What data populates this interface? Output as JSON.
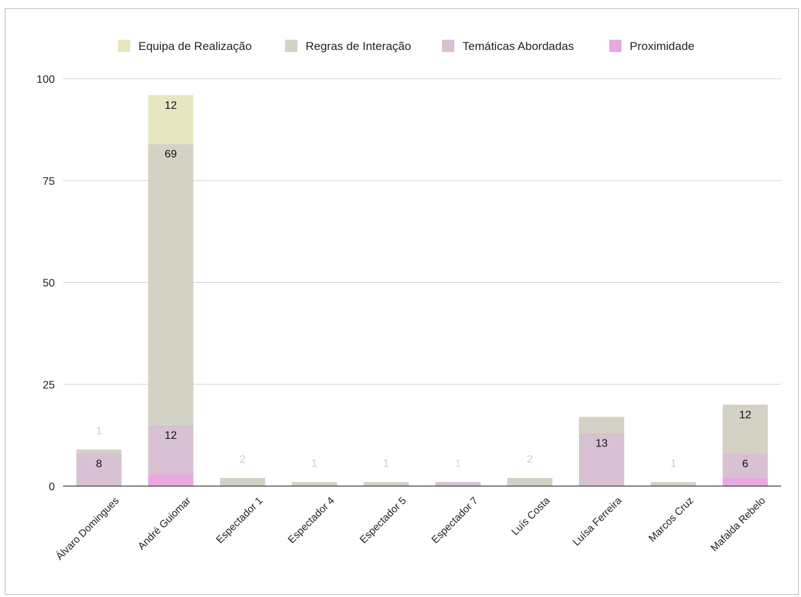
{
  "chart_data": {
    "type": "bar",
    "stacked": true,
    "title": "",
    "xlabel": "",
    "ylabel": "",
    "ylim": [
      0,
      100
    ],
    "yticks": [
      0,
      25,
      50,
      75,
      100
    ],
    "grid": true,
    "legend_position": "top",
    "categories": [
      "Álvaro Domingues",
      "André Guiomar",
      "Espectador 1",
      "Espectador 4",
      "Espectador 5",
      "Espectador 7",
      "Luís Costa",
      "Luísa Ferreira",
      "Marcos Cruz",
      "Mafalda Rebelo"
    ],
    "series": [
      {
        "name": "Proximidade",
        "color": "#e9a8e0",
        "values": [
          0,
          3,
          0,
          0,
          0,
          0,
          0,
          0,
          0,
          2
        ]
      },
      {
        "name": "Temáticas Abordadas",
        "color": "#d7c1d2",
        "values": [
          8,
          12,
          0,
          0,
          0,
          1,
          0,
          13,
          0,
          6
        ]
      },
      {
        "name": "Regras de Interação",
        "color": "#d3d2c5",
        "values": [
          1,
          69,
          2,
          1,
          1,
          0,
          2,
          4,
          1,
          12
        ]
      },
      {
        "name": "Equipa de Realização",
        "color": "#e8e6c1",
        "values": [
          0,
          12,
          0,
          0,
          0,
          0,
          0,
          0,
          0,
          0
        ]
      }
    ],
    "legend_order": [
      "Equipa de Realização",
      "Regras de Interação",
      "Temáticas Abordadas",
      "Proximidade"
    ],
    "data_labels": [
      {
        "category": "Álvaro Domingues",
        "series": "Temáticas Abordadas",
        "text": "8"
      },
      {
        "category": "Álvaro Domingues",
        "series": "Regras de Interação",
        "text": "1"
      },
      {
        "category": "André Guiomar",
        "series": "Proximidade",
        "text": "3"
      },
      {
        "category": "André Guiomar",
        "series": "Temáticas Abordadas",
        "text": "12"
      },
      {
        "category": "André Guiomar",
        "series": "Regras de Interação",
        "text": "69"
      },
      {
        "category": "André Guiomar",
        "series": "Equipa de Realização",
        "text": "12"
      },
      {
        "category": "Espectador 1",
        "series": "Regras de Interação",
        "text": "2"
      },
      {
        "category": "Espectador 4",
        "series": "Regras de Interação",
        "text": "1"
      },
      {
        "category": "Espectador 5",
        "series": "Regras de Interação",
        "text": "1"
      },
      {
        "category": "Espectador 7",
        "series": "Temáticas Abordadas",
        "text": "1"
      },
      {
        "category": "Luís Costa",
        "series": "Regras de Interação",
        "text": "2"
      },
      {
        "category": "Luísa Ferreira",
        "series": "Temáticas Abordadas",
        "text": "13"
      },
      {
        "category": "Luísa Ferreira",
        "series": "Regras de Interação",
        "text": "4"
      },
      {
        "category": "Marcos Cruz",
        "series": "Regras de Interação",
        "text": "1"
      },
      {
        "category": "Mafalda Rebelo",
        "series": "Proximidade",
        "text": "2"
      },
      {
        "category": "Mafalda Rebelo",
        "series": "Temáticas Abordadas",
        "text": "6"
      },
      {
        "category": "Mafalda Rebelo",
        "series": "Regras de Interação",
        "text": "12"
      }
    ]
  }
}
